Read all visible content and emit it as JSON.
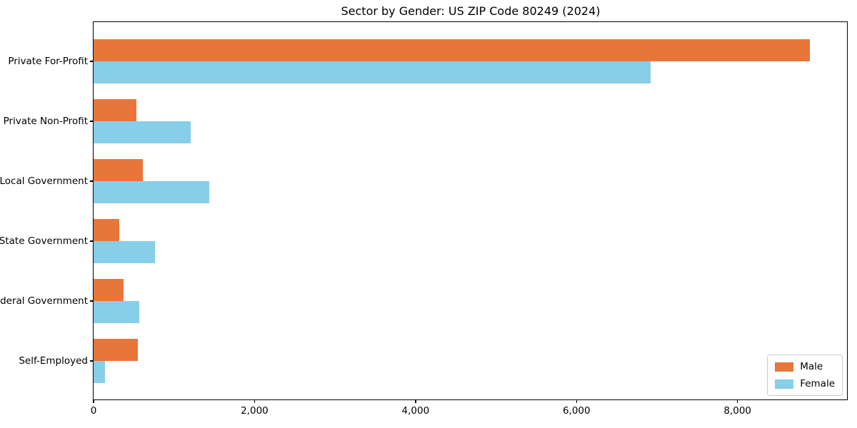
{
  "chart_data": {
    "type": "bar",
    "orientation": "horizontal",
    "title": "Sector by Gender: US ZIP Code 80249 (2024)",
    "categories": [
      "Private For-Profit",
      "Private Non-Profit",
      "Local Government",
      "State Government",
      "Federal Government",
      "Self-Employed"
    ],
    "series": [
      {
        "name": "Male",
        "color": "#e8763b",
        "values": [
          8900,
          530,
          610,
          320,
          370,
          550
        ]
      },
      {
        "name": "Female",
        "color": "#87cee8",
        "values": [
          6920,
          1210,
          1440,
          760,
          570,
          140
        ]
      }
    ],
    "xlabel": "",
    "ylabel": "",
    "xlim": [
      0,
      9360
    ],
    "xticks": [
      0,
      2000,
      4000,
      6000,
      8000
    ],
    "xtick_labels": [
      "0",
      "2,000",
      "4,000",
      "6,000",
      "8,000"
    ],
    "grid": false,
    "legend_position": "lower right",
    "colors": {
      "male": "#e8763b",
      "female": "#87cee8",
      "axis": "#000000",
      "legend_border": "#cccccc"
    }
  }
}
